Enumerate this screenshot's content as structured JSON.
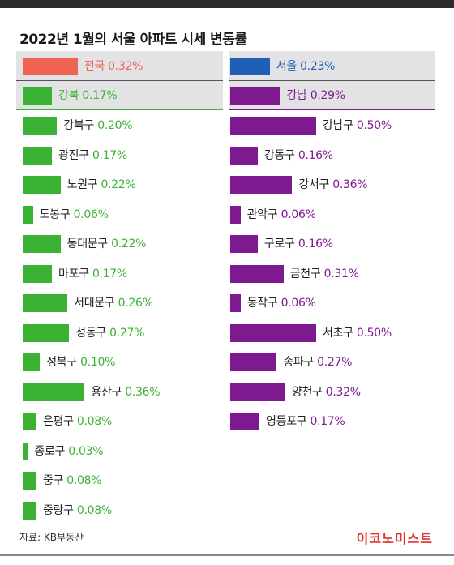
{
  "title": "2022년 1월의 서울 아파트 시세 변동률",
  "source": "자료: KB부동산",
  "logo": "이코노미스트",
  "colors": {
    "national": "#ef6352",
    "seoul": "#1f5fb4",
    "north": "#3bb233",
    "south": "#7e1a8f",
    "panel": "#e3e3e6"
  },
  "chart_data": {
    "type": "bar",
    "orientation": "horizontal",
    "unit": "%",
    "panels": [
      {
        "header": [
          {
            "name": "전국",
            "value": 0.32,
            "label": "0.32%",
            "color_key": "national"
          },
          {
            "name": "강북",
            "value": 0.17,
            "label": "0.17%",
            "color_key": "north"
          }
        ],
        "series_color_key": "north",
        "items": [
          {
            "name": "강북구",
            "value": 0.2,
            "label": "0.20%"
          },
          {
            "name": "광진구",
            "value": 0.17,
            "label": "0.17%"
          },
          {
            "name": "노원구",
            "value": 0.22,
            "label": "0.22%"
          },
          {
            "name": "도봉구",
            "value": 0.06,
            "label": "0.06%"
          },
          {
            "name": "동대문구",
            "value": 0.22,
            "label": "0.22%"
          },
          {
            "name": "마포구",
            "value": 0.17,
            "label": "0.17%"
          },
          {
            "name": "서대문구",
            "value": 0.26,
            "label": "0.26%"
          },
          {
            "name": "성동구",
            "value": 0.27,
            "label": "0.27%"
          },
          {
            "name": "성북구",
            "value": 0.1,
            "label": "0.10%"
          },
          {
            "name": "용산구",
            "value": 0.36,
            "label": "0.36%"
          },
          {
            "name": "은평구",
            "value": 0.08,
            "label": "0.08%"
          },
          {
            "name": "종로구",
            "value": 0.03,
            "label": "0.03%"
          },
          {
            "name": "중구",
            "value": 0.08,
            "label": "0.08%"
          },
          {
            "name": "중랑구",
            "value": 0.08,
            "label": "0.08%"
          }
        ]
      },
      {
        "header": [
          {
            "name": "서울",
            "value": 0.23,
            "label": "0.23%",
            "color_key": "seoul"
          },
          {
            "name": "강남",
            "value": 0.29,
            "label": "0.29%",
            "color_key": "south"
          }
        ],
        "series_color_key": "south",
        "items": [
          {
            "name": "강남구",
            "value": 0.5,
            "label": "0.50%"
          },
          {
            "name": "강동구",
            "value": 0.16,
            "label": "0.16%"
          },
          {
            "name": "강서구",
            "value": 0.36,
            "label": "0.36%"
          },
          {
            "name": "관악구",
            "value": 0.06,
            "label": "0.06%"
          },
          {
            "name": "구로구",
            "value": 0.16,
            "label": "0.16%"
          },
          {
            "name": "금천구",
            "value": 0.31,
            "label": "0.31%"
          },
          {
            "name": "동작구",
            "value": 0.06,
            "label": "0.06%"
          },
          {
            "name": "서초구",
            "value": 0.5,
            "label": "0.50%"
          },
          {
            "name": "송파구",
            "value": 0.27,
            "label": "0.27%"
          },
          {
            "name": "양천구",
            "value": 0.32,
            "label": "0.32%"
          },
          {
            "name": "영등포구",
            "value": 0.17,
            "label": "0.17%"
          }
        ]
      }
    ]
  }
}
